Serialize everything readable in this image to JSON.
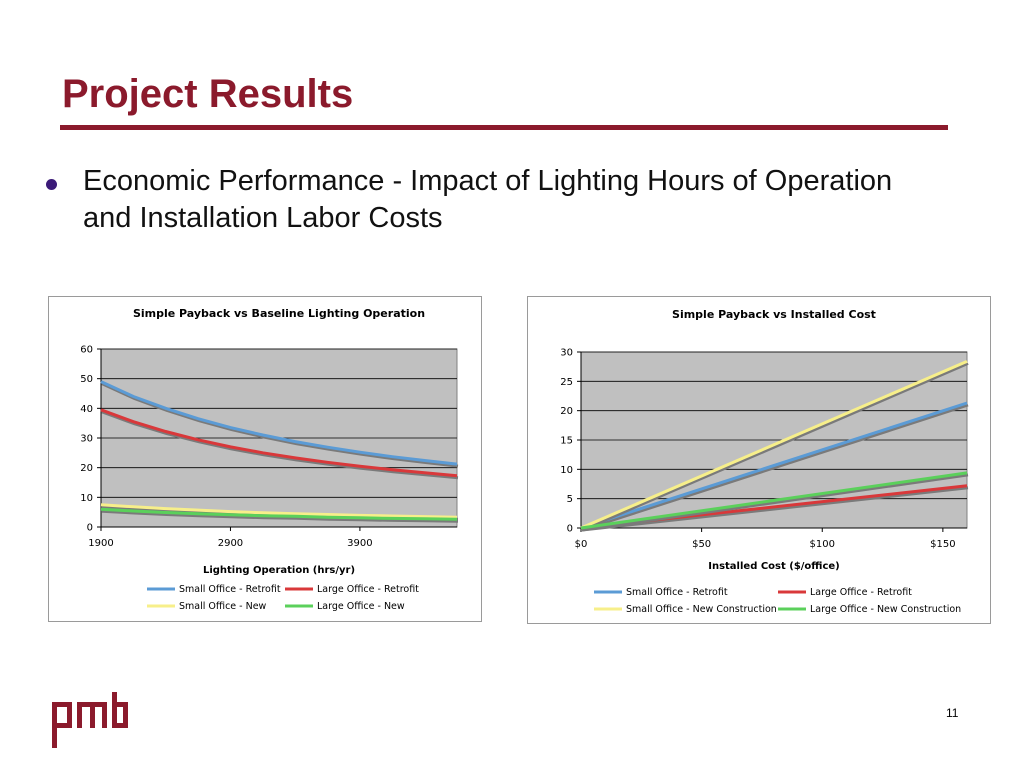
{
  "slide": {
    "title": "Project Results",
    "bullet": "Economic Performance - Impact of Lighting Hours of Operation and Installation Labor Costs",
    "page_number": "11",
    "logo_text": "pmb",
    "colors": {
      "accent": "#8b1a2c",
      "bullet": "#3b1a78",
      "plot_bg": "#c0c0c0"
    }
  },
  "chart_data": [
    {
      "type": "line",
      "title": "Simple Payback vs Baseline Lighting Operation",
      "xlabel": "Lighting Operation (hrs/yr)",
      "ylabel": "",
      "xlim": [
        1900,
        4650
      ],
      "ylim": [
        0,
        60
      ],
      "xticks": [
        "1900",
        "2900",
        "3900"
      ],
      "yticks": [
        "0",
        "10",
        "20",
        "30",
        "40",
        "50",
        "60"
      ],
      "grid": true,
      "legend_position": "bottom",
      "x": [
        1900,
        2150,
        2400,
        2650,
        2900,
        3150,
        3400,
        3650,
        3900,
        4150,
        4400,
        4650
      ],
      "series": [
        {
          "name": "Small Office - Retrofit",
          "color": "#5b9bd5",
          "values": [
            49,
            44,
            40,
            36.5,
            33.5,
            31,
            28.8,
            26.9,
            25.2,
            23.7,
            22.4,
            21.2
          ]
        },
        {
          "name": "Large Office - Retrofit",
          "color": "#d9383a",
          "values": [
            39.5,
            35.5,
            32.2,
            29.4,
            27,
            25,
            23.3,
            21.8,
            20.5,
            19.3,
            18.3,
            17.3
          ]
        },
        {
          "name": "Small Office - New",
          "color": "#f7ef8a",
          "values": [
            7.5,
            6.8,
            6.2,
            5.7,
            5.2,
            4.8,
            4.5,
            4.2,
            3.9,
            3.7,
            3.5,
            3.3
          ]
        },
        {
          "name": "Large Office - New",
          "color": "#5bd05b",
          "values": [
            6,
            5.4,
            4.9,
            4.5,
            4.1,
            3.8,
            3.6,
            3.3,
            3.1,
            2.9,
            2.8,
            2.6
          ]
        }
      ]
    },
    {
      "type": "line",
      "title": "Simple Payback vs Installed Cost",
      "xlabel": "Installed Cost ($/office)",
      "ylabel": "",
      "xlim": [
        0,
        160
      ],
      "ylim": [
        0,
        30
      ],
      "xticks": [
        "$0",
        "$50",
        "$100",
        "$150"
      ],
      "yticks": [
        "0",
        "5",
        "10",
        "15",
        "20",
        "25",
        "30"
      ],
      "grid": true,
      "legend_position": "bottom",
      "x": [
        0,
        160
      ],
      "series": [
        {
          "name": "Small Office - Retrofit",
          "color": "#5b9bd5",
          "values": [
            0,
            21.3
          ]
        },
        {
          "name": "Large Office - Retrofit",
          "color": "#d9383a",
          "values": [
            0,
            7.2
          ]
        },
        {
          "name": "Small Office - New Construction",
          "color": "#f7ef8a",
          "values": [
            0,
            28.4
          ]
        },
        {
          "name": "Large Office - New Construction",
          "color": "#5bd05b",
          "values": [
            0,
            9.4
          ]
        }
      ]
    }
  ]
}
